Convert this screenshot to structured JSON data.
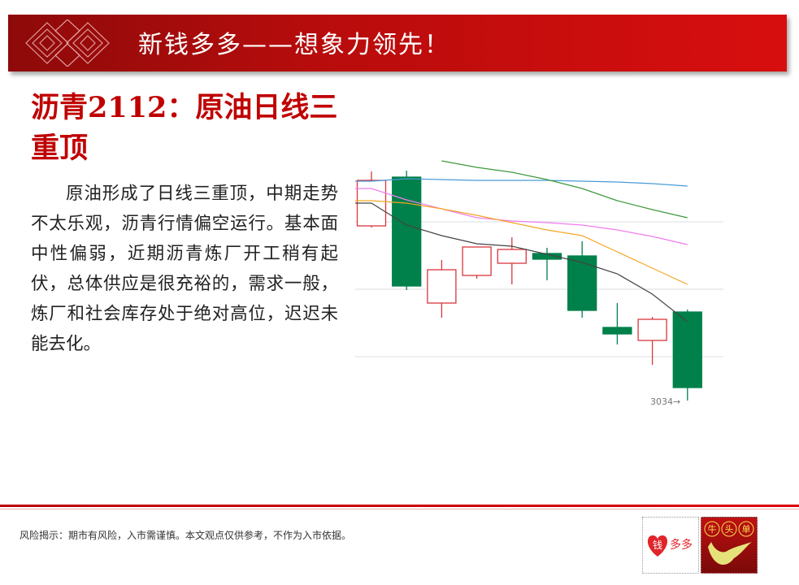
{
  "banner": {
    "title": "新钱多多——想象力领先！"
  },
  "heading": "沥青2112：原油日线三重顶",
  "body": "原油形成了日线三重顶，中期走势不太乐观，沥青行情偏空运行。基本面中性偏弱，近期沥青炼厂开工稍有起伏，总体供应是很充裕的，需求一般，炼厂和社会库存处于绝对高位，迟迟未能去化。",
  "disclaimer": "风险揭示：期市有风险，入市需谨慎。本文观点仅供参考，不作为入市依据。",
  "logos": {
    "left": "钱多多",
    "right": "牛头单"
  },
  "colors": {
    "up": "#d9363e",
    "down": "#00804a",
    "accent": "#c00000"
  },
  "chart_data": {
    "type": "candlestick",
    "grid": true,
    "annotation": "3034→",
    "candles": [
      {
        "open": 3249,
        "close": 3305,
        "high": 3316,
        "low": 3247
      },
      {
        "open": 3309,
        "close": 3175,
        "high": 3317,
        "low": 3170
      },
      {
        "open": 3154,
        "close": 3195,
        "high": 3207,
        "low": 3136
      },
      {
        "open": 3188,
        "close": 3223,
        "high": 3223,
        "low": 3184
      },
      {
        "open": 3203,
        "close": 3220,
        "high": 3235,
        "low": 3177
      },
      {
        "open": 3215,
        "close": 3208,
        "high": 3222,
        "low": 3182
      },
      {
        "open": 3212,
        "close": 3145,
        "high": 3230,
        "low": 3136
      },
      {
        "open": 3124,
        "close": 3116,
        "high": 3154,
        "low": 3103
      },
      {
        "open": 3108,
        "close": 3134,
        "high": 3137,
        "low": 3078
      },
      {
        "open": 3143,
        "close": 3050,
        "high": 3146,
        "low": 3034
      }
    ],
    "ma_lines": [
      {
        "color": "#4a9ad8",
        "values": [
          3304,
          3307,
          3306,
          3305,
          3305,
          3305,
          3304,
          3303,
          3301,
          3298
        ]
      },
      {
        "color": "#3d9a3d",
        "values": [
          null,
          null,
          3329,
          3321,
          3315,
          3306,
          3295,
          3280,
          3269,
          3259
        ]
      },
      {
        "color": "#f07cf0",
        "values": [
          3295,
          3281,
          3270,
          3259,
          3255,
          3253,
          3250,
          3244,
          3236,
          3226
        ]
      },
      {
        "color": "#f5a623",
        "values": [
          3280,
          3277,
          3270,
          3262,
          3253,
          3244,
          3237,
          3217,
          3197,
          3177
        ]
      },
      {
        "color": "#444444",
        "values": [
          3277,
          3250,
          3237,
          3227,
          3224,
          3214,
          3204,
          3190,
          3165,
          3131
        ]
      }
    ]
  }
}
